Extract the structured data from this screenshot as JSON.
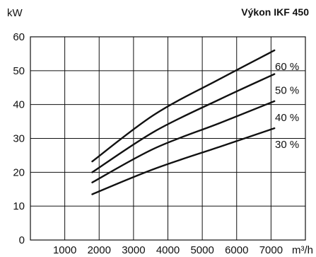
{
  "chart_data": {
    "type": "line",
    "title": "Výkon IKF 450",
    "ylabel": "kW",
    "xlabel": "m³/h",
    "xlim": [
      0,
      8000
    ],
    "ylim": [
      0,
      60
    ],
    "x_ticks": [
      1000,
      2000,
      3000,
      4000,
      5000,
      6000,
      7000
    ],
    "y_ticks": [
      0,
      10,
      20,
      30,
      40,
      50,
      60
    ],
    "grid": true,
    "series": [
      {
        "name": "60 %",
        "x": [
          1800,
          3600,
          5500,
          7100
        ],
        "y": [
          23.2,
          37,
          47.5,
          56
        ]
      },
      {
        "name": "50 %",
        "x": [
          1800,
          3600,
          5500,
          7100
        ],
        "y": [
          20,
          32,
          41.5,
          49
        ]
      },
      {
        "name": "40 %",
        "x": [
          1800,
          3600,
          5500,
          7100
        ],
        "y": [
          17,
          27,
          34.5,
          41
        ]
      },
      {
        "name": "30 %",
        "x": [
          1800,
          3600,
          5500,
          7100
        ],
        "y": [
          13.5,
          21,
          27.5,
          33
        ]
      }
    ]
  }
}
